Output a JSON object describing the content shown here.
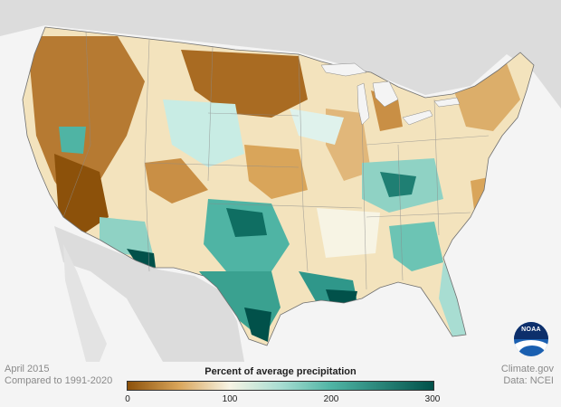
{
  "map": {
    "subject": "Contiguous United States, April 2015 precipitation anomaly"
  },
  "footer": {
    "period": "April 2015",
    "baseline": "Compared to 1991-2020",
    "credit": "Climate.gov",
    "data_source": "Data: NCEI"
  },
  "legend": {
    "title": "Percent of average precipitation",
    "ticks": [
      "0",
      "100",
      "200",
      "300"
    ],
    "min": 0,
    "max": 300,
    "colors": {
      "0": "#8c510a",
      "50": "#d9a55a",
      "100": "#f7f4e4",
      "150": "#a8ddd2",
      "200": "#4fb4a4",
      "300": "#01514a"
    }
  },
  "logo": {
    "text": "NOAA"
  },
  "colors": {
    "background": "#f4f4f4",
    "land_outside": "#dcdcdc",
    "water": "#f4f4f4",
    "state_lines": "#8a8a8a"
  }
}
